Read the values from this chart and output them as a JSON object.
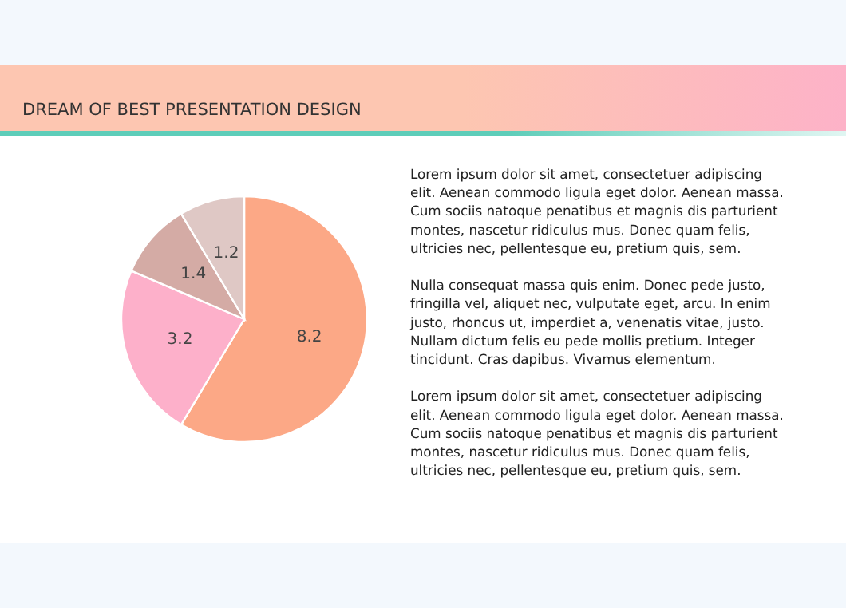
{
  "chart_data": {
    "type": "pie",
    "title": "DREAM OF BEST PRESENTATION DESIGN",
    "categories": [
      null,
      null,
      null,
      null
    ],
    "values": [
      8.2,
      3.2,
      1.4,
      1.2
    ],
    "colors": [
      "#fca886",
      "#fdb0ca",
      "#d4aba5",
      "#dfc8c5"
    ],
    "data_labels": true,
    "annotations": [
      "Lorem ipsum dolor sit amet, consectetuer adipiscing elit. Aenean commodo ligula eget dolor. Aenean massa. Cum sociis natoque penatibus et magnis dis parturient montes, nascetur ridiculus mus. Donec quam felis, ultricies nec, pellentesque eu, pretium quis, sem.",
      "Nulla consequat massa quis enim. Donec pede justo, fringilla vel, aliquet nec, vulputate eget, arcu. In enim justo, rhoncus ut, imperdiet a, venenatis vitae, justo. Nullam dictum felis eu pede mollis pretium. Integer tincidunt. Cras dapibus. Vivamus elementum.",
      "Lorem ipsum dolor sit amet, consectetuer adipiscing elit. Aenean commodo ligula eget dolor. Aenean massa. Cum sociis natoque penatibus et magnis dis parturient montes, nascetur ridiculus mus. Donec quam felis, ultricies nec, pellentesque eu, pretium quis, sem."
    ]
  }
}
